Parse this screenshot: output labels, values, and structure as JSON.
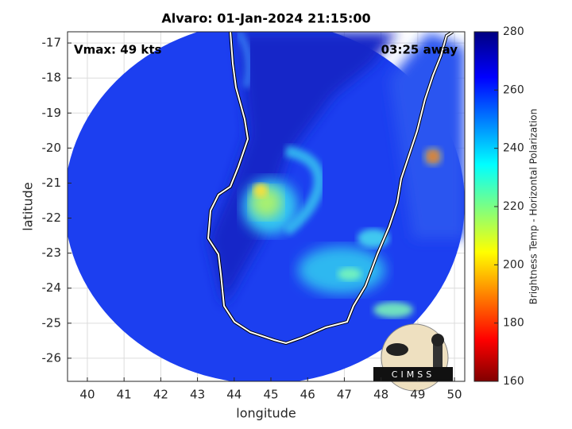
{
  "title": "Alvaro: 01-Jan-2024 21:15:00",
  "annotations": {
    "vmax": "Vmax: 49 kts",
    "time_away": "03:25 away"
  },
  "map": {
    "x_label": "longitude",
    "y_label": "latitude",
    "xlim": [
      39.46,
      50.28
    ],
    "xticks": [
      40,
      41,
      42,
      43,
      44,
      45,
      46,
      47,
      48,
      49,
      50
    ],
    "ylim": [
      -26.66,
      -16.68
    ],
    "yticks": [
      -26,
      -25,
      -24,
      -23,
      -22,
      -21,
      -20,
      -19,
      -18,
      -17
    ],
    "grid": true
  },
  "colorbar": {
    "label": "Brightness Temp - Horizontal Polarization",
    "lim": [
      160,
      280
    ],
    "ticks": [
      160,
      180,
      200,
      220,
      240,
      260,
      280
    ]
  },
  "logo": {
    "text": "CIMSS"
  }
}
